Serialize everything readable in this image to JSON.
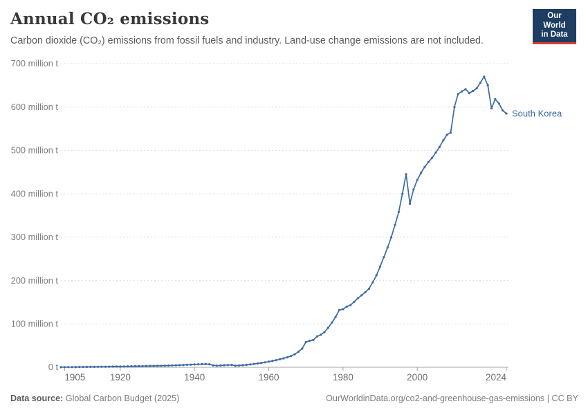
{
  "header": {
    "logo": {
      "line1": "Our World",
      "line2": "in Data",
      "bg_color": "#1d3d63",
      "bar_color": "#d73c34"
    }
  },
  "footer": {
    "source_label": "Data source:",
    "source_value": "Global Carbon Budget (2025)",
    "credit": "OurWorldinData.org/co2-and-greenhouse-gas-emissions | CC BY"
  },
  "chart_data": {
    "type": "line",
    "title": "Annual CO₂ emissions",
    "subtitle": "Carbon dioxide (CO₂) emissions from fossil fuels and industry. Land-use change emissions are not included.",
    "entity": "South Korea",
    "xlabel": "",
    "ylabel": "",
    "y_unit": "million t",
    "xlim": [
      1904,
      2024
    ],
    "ylim": [
      0,
      700
    ],
    "grid": "horizontal-dashed",
    "legend_position": "line-end-label",
    "x_ticks": [
      {
        "year": 1905,
        "label": "1905"
      },
      {
        "year": 1920,
        "label": "1920"
      },
      {
        "year": 1940,
        "label": "1940"
      },
      {
        "year": 1960,
        "label": "1960"
      },
      {
        "year": 1980,
        "label": "1980"
      },
      {
        "year": 2000,
        "label": "2000"
      },
      {
        "year": 2024,
        "label": "2024"
      }
    ],
    "y_ticks": [
      {
        "value": 0,
        "label": "0 t"
      },
      {
        "value": 100,
        "label": "100 million t"
      },
      {
        "value": 200,
        "label": "200 million t"
      },
      {
        "value": 300,
        "label": "300 million t"
      },
      {
        "value": 400,
        "label": "400 million t"
      },
      {
        "value": 500,
        "label": "500 million t"
      },
      {
        "value": 600,
        "label": "600 million t"
      },
      {
        "value": 700,
        "label": "700 million t"
      }
    ],
    "series": [
      {
        "name": "South Korea",
        "color": "#3d6aa5",
        "years": [
          1904,
          1905,
          1906,
          1907,
          1908,
          1909,
          1910,
          1911,
          1912,
          1913,
          1914,
          1915,
          1916,
          1917,
          1918,
          1919,
          1920,
          1921,
          1922,
          1923,
          1924,
          1925,
          1926,
          1927,
          1928,
          1929,
          1930,
          1931,
          1932,
          1933,
          1934,
          1935,
          1936,
          1937,
          1938,
          1939,
          1940,
          1941,
          1942,
          1943,
          1944,
          1945,
          1946,
          1947,
          1948,
          1949,
          1950,
          1951,
          1952,
          1953,
          1954,
          1955,
          1956,
          1957,
          1958,
          1959,
          1960,
          1961,
          1962,
          1963,
          1964,
          1965,
          1966,
          1967,
          1968,
          1969,
          1970,
          1971,
          1972,
          1973,
          1974,
          1975,
          1976,
          1977,
          1978,
          1979,
          1980,
          1981,
          1982,
          1983,
          1984,
          1985,
          1986,
          1987,
          1988,
          1989,
          1990,
          1991,
          1992,
          1993,
          1994,
          1995,
          1996,
          1997,
          1998,
          1999,
          2000,
          2001,
          2002,
          2003,
          2004,
          2005,
          2006,
          2007,
          2008,
          2009,
          2010,
          2011,
          2012,
          2013,
          2014,
          2015,
          2016,
          2017,
          2018,
          2019,
          2020,
          2021,
          2022,
          2023,
          2024
        ],
        "values": [
          0.2,
          0.3,
          0.3,
          0.4,
          0.5,
          0.6,
          0.7,
          0.8,
          0.9,
          1.0,
          1.1,
          1.2,
          1.3,
          1.5,
          1.6,
          1.7,
          1.8,
          1.9,
          2.1,
          2.2,
          2.4,
          2.5,
          2.7,
          2.9,
          3.1,
          3.2,
          3.4,
          3.5,
          3.7,
          4.0,
          4.3,
          4.6,
          5.0,
          5.3,
          5.7,
          6.1,
          6.5,
          6.8,
          7.1,
          7.3,
          7.0,
          4.5,
          3.8,
          4.2,
          4.8,
          5.2,
          5.6,
          3.8,
          4.2,
          4.8,
          5.6,
          6.6,
          7.6,
          8.8,
          10,
          11.5,
          13,
          14.5,
          16.5,
          18.5,
          20.5,
          23,
          26,
          30,
          36,
          43,
          58,
          61,
          63,
          71,
          75,
          81,
          91,
          103,
          116,
          132,
          134,
          140,
          143,
          151,
          159,
          166,
          173,
          181,
          196,
          212,
          232,
          254,
          276,
          300,
          328,
          358,
          400,
          445,
          377,
          410,
          432,
          448,
          462,
          473,
          483,
          495,
          508,
          523,
          536,
          541,
          600,
          630,
          636,
          641,
          632,
          637,
          643,
          656,
          670,
          650,
          597,
          618,
          608,
          592,
          585
        ]
      }
    ],
    "colors": {
      "line": "#3d6aa5",
      "series_label": "#3d6aa5",
      "grid": "#dddddd",
      "axis": "#a3a3a3",
      "y_tick_label": "#7d7d7d",
      "x_tick_label": "#6e6e6e"
    }
  }
}
